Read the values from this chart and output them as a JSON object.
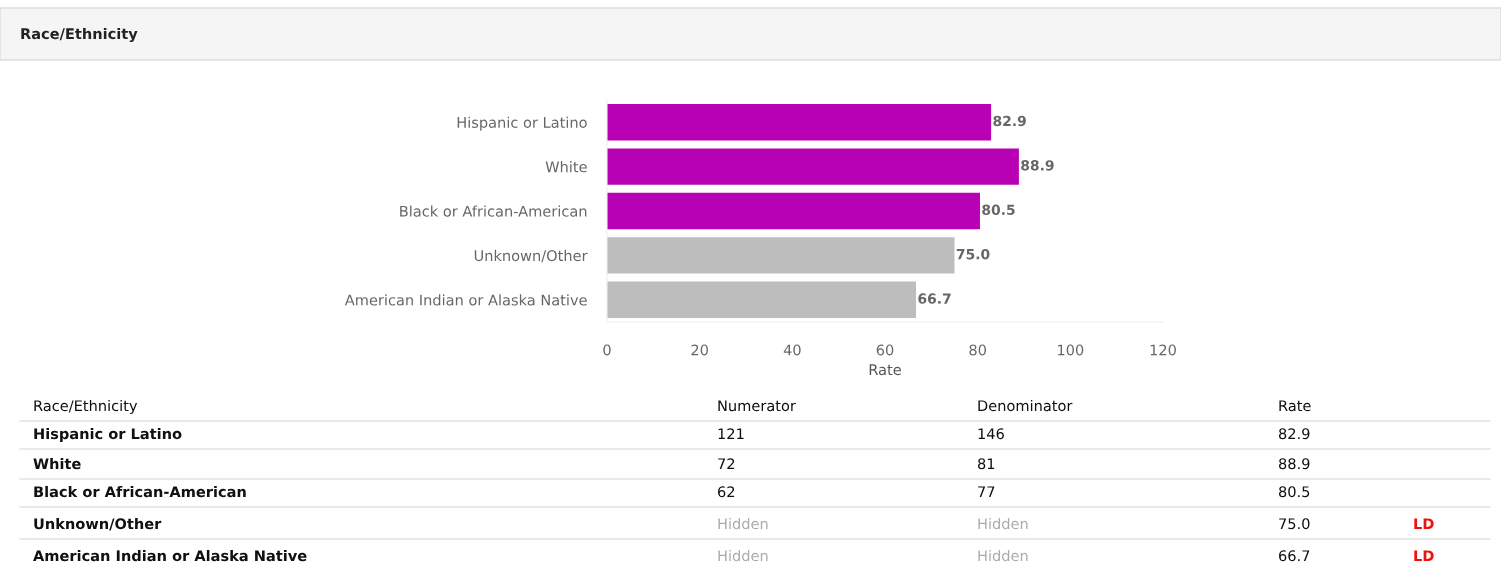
{
  "chart_data": {
    "type": "bar",
    "orientation": "horizontal",
    "title": "Race/Ethnicity",
    "xlabel": "Rate",
    "categories": [
      "Hispanic or Latino",
      "White",
      "Black or African-American",
      "Unknown/Other",
      "American Indian or Alaska Native"
    ],
    "values": [
      82.9,
      88.9,
      80.5,
      75.0,
      66.7
    ],
    "colors": [
      "#b800b4",
      "#b800b4",
      "#b800b4",
      "#bdbdbd",
      "#bdbdbd"
    ],
    "value_labels": [
      "82.9",
      "88.9",
      "80.5",
      "75.0",
      "66.7"
    ],
    "xlim": [
      0,
      120
    ],
    "xticks": [
      0,
      20,
      40,
      60,
      80,
      100,
      120
    ],
    "grid": false,
    "legend": false,
    "annotations": [
      "Race/Ethnicity",
      "Numerator",
      "Denominator",
      "Rate",
      "121",
      "146",
      "72",
      "81",
      "62",
      "77",
      "Hidden",
      "Hidden",
      "Hidden",
      "Hidden",
      "LD",
      "LD"
    ]
  }
}
